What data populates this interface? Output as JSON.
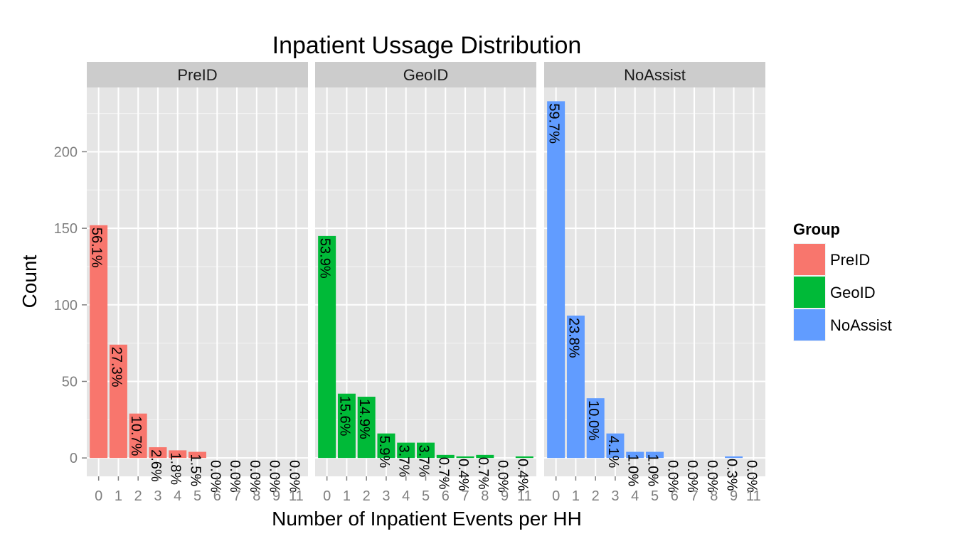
{
  "chart_data": {
    "type": "bar",
    "title": "Inpatient Ussage Distribution",
    "xlabel": "Number of Inpatient Events per HH",
    "ylabel": "Count",
    "ylim": [
      -12,
      242
    ],
    "y_ticks": [
      0,
      50,
      100,
      150,
      200
    ],
    "categories": [
      "0",
      "1",
      "2",
      "3",
      "4",
      "5",
      "6",
      "7",
      "8",
      "9",
      "11"
    ],
    "grid": true,
    "legend": {
      "title": "Group",
      "placement": "right",
      "entries": [
        "PreID",
        "GeoID",
        "NoAssist"
      ]
    },
    "series": [
      {
        "name": "PreID",
        "color": "#F8766D",
        "values": [
          152,
          74,
          29,
          7,
          5,
          4,
          0,
          0,
          0,
          0,
          0
        ],
        "labels": [
          "56.1%",
          "27.3%",
          "10.7%",
          "2.6%",
          "1.8%",
          "1.5%",
          "0.0%",
          "0.0%",
          "0.0%",
          "0.0%",
          "0.0%"
        ]
      },
      {
        "name": "GeoID",
        "color": "#00BA38",
        "values": [
          145,
          42,
          40,
          16,
          10,
          10,
          2,
          1,
          2,
          0,
          1
        ],
        "labels": [
          "53.9%",
          "15.6%",
          "14.9%",
          "5.9%",
          "3.7%",
          "3.7%",
          "0.7%",
          "0.4%",
          "0.7%",
          "0.0%",
          "0.4%"
        ]
      },
      {
        "name": "NoAssist",
        "color": "#619CFF",
        "values": [
          233,
          93,
          39,
          16,
          4,
          4,
          0,
          0,
          0,
          1,
          0
        ],
        "labels": [
          "59.7%",
          "23.8%",
          "10.0%",
          "4.1%",
          "1.0%",
          "1.0%",
          "0.0%",
          "0.0%",
          "0.0%",
          "0.3%",
          "0.0%"
        ]
      }
    ]
  }
}
